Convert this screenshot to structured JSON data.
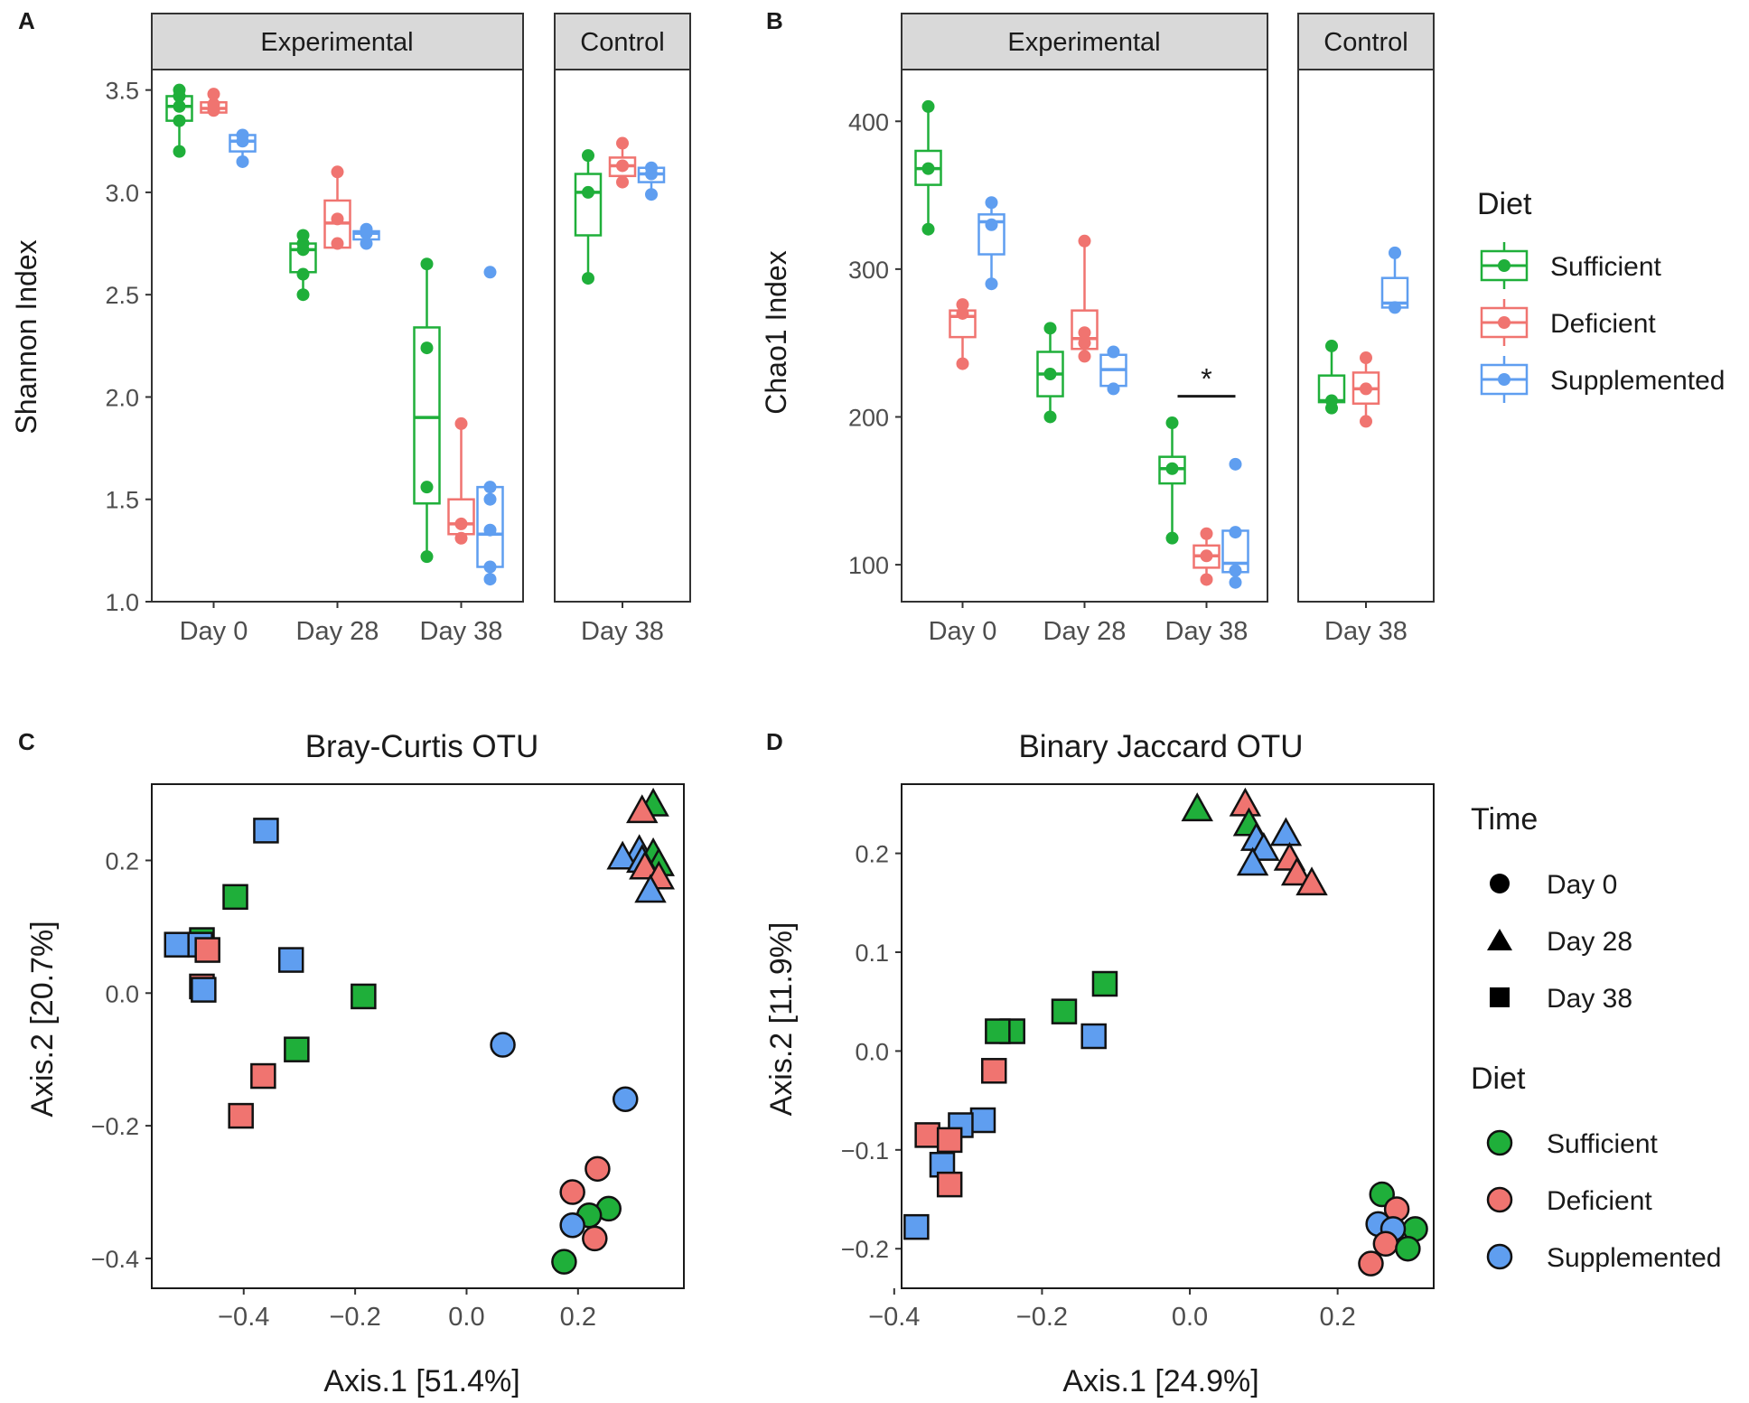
{
  "colors": {
    "Sufficient": "#1faf3a",
    "Deficient": "#f07470",
    "Supplemented": "#5f9ef0",
    "strip_fill": "#d9d9d9",
    "frame": "#333333"
  },
  "chart_data": [
    {
      "panel": "A",
      "type": "box",
      "facets": [
        "Experimental",
        "Control"
      ],
      "facet_categories": [
        [
          "Day 0",
          "Day 28",
          "Day 38"
        ],
        [
          "Day 38"
        ]
      ],
      "ylabel": "Shannon Index",
      "ylim": [
        1.0,
        3.6
      ],
      "yticks": [
        1.0,
        1.5,
        2.0,
        2.5,
        3.0,
        3.5
      ],
      "ytick_labels": [
        "1.0",
        "1.5",
        "2.0",
        "2.5",
        "3.0",
        "3.5"
      ],
      "groups": [
        {
          "facet": 0,
          "category": "Day 0",
          "diet": "Sufficient",
          "q1": 3.35,
          "median": 3.42,
          "q3": 3.47,
          "min": 3.2,
          "max": 3.5,
          "points": [
            3.2,
            3.35,
            3.42,
            3.47,
            3.5
          ]
        },
        {
          "facet": 0,
          "category": "Day 0",
          "diet": "Deficient",
          "q1": 3.39,
          "median": 3.41,
          "q3": 3.44,
          "min": 3.39,
          "max": 3.48,
          "points": [
            3.4,
            3.43,
            3.48
          ]
        },
        {
          "facet": 0,
          "category": "Day 0",
          "diet": "Supplemented",
          "q1": 3.2,
          "median": 3.25,
          "q3": 3.28,
          "min": 3.15,
          "max": 3.28,
          "points": [
            3.15,
            3.25,
            3.28
          ]
        },
        {
          "facet": 0,
          "category": "Day 28",
          "diet": "Sufficient",
          "q1": 2.61,
          "median": 2.72,
          "q3": 2.75,
          "min": 2.5,
          "max": 2.79,
          "points": [
            2.5,
            2.6,
            2.72,
            2.75,
            2.79
          ]
        },
        {
          "facet": 0,
          "category": "Day 28",
          "diet": "Deficient",
          "q1": 2.73,
          "median": 2.85,
          "q3": 2.96,
          "min": 2.73,
          "max": 3.1,
          "points": [
            2.75,
            2.87,
            3.1
          ]
        },
        {
          "facet": 0,
          "category": "Day 28",
          "diet": "Supplemented",
          "q1": 2.77,
          "median": 2.8,
          "q3": 2.81,
          "min": 2.75,
          "max": 2.82,
          "points": [
            2.75,
            2.8,
            2.82
          ]
        },
        {
          "facet": 0,
          "category": "Day 38",
          "diet": "Sufficient",
          "q1": 1.48,
          "median": 1.9,
          "q3": 2.34,
          "min": 1.22,
          "max": 2.65,
          "points": [
            1.22,
            1.56,
            2.24,
            2.65
          ]
        },
        {
          "facet": 0,
          "category": "Day 38",
          "diet": "Deficient",
          "q1": 1.33,
          "median": 1.38,
          "q3": 1.5,
          "min": 1.31,
          "max": 1.87,
          "points": [
            1.31,
            1.38,
            1.87
          ]
        },
        {
          "facet": 0,
          "category": "Day 38",
          "diet": "Supplemented",
          "q1": 1.17,
          "median": 1.33,
          "q3": 1.56,
          "min": 1.11,
          "max": 1.56,
          "points": [
            1.11,
            1.17,
            1.35,
            1.5,
            1.56,
            2.61
          ]
        },
        {
          "facet": 1,
          "category": "Day 38",
          "diet": "Sufficient",
          "q1": 2.79,
          "median": 3.0,
          "q3": 3.09,
          "min": 2.58,
          "max": 3.18,
          "points": [
            2.58,
            3.0,
            3.18
          ]
        },
        {
          "facet": 1,
          "category": "Day 38",
          "diet": "Deficient",
          "q1": 3.08,
          "median": 3.13,
          "q3": 3.17,
          "min": 3.05,
          "max": 3.24,
          "points": [
            3.05,
            3.13,
            3.24
          ]
        },
        {
          "facet": 1,
          "category": "Day 38",
          "diet": "Supplemented",
          "q1": 3.05,
          "median": 3.09,
          "q3": 3.12,
          "min": 2.99,
          "max": 3.12,
          "points": [
            2.99,
            3.09,
            3.12
          ]
        }
      ]
    },
    {
      "panel": "B",
      "type": "box",
      "facets": [
        "Experimental",
        "Control"
      ],
      "facet_categories": [
        [
          "Day 0",
          "Day 28",
          "Day 38"
        ],
        [
          "Day 38"
        ]
      ],
      "ylabel": "Chao1 Index",
      "ylim": [
        75,
        435
      ],
      "yticks": [
        100,
        200,
        300,
        400
      ],
      "ytick_labels": [
        "100",
        "200",
        "300",
        "400"
      ],
      "annotation": {
        "text": "*",
        "category": "Day 38"
      },
      "groups": [
        {
          "facet": 0,
          "category": "Day 0",
          "diet": "Sufficient",
          "q1": 357,
          "median": 368,
          "q3": 380,
          "min": 327,
          "max": 410,
          "points": [
            327,
            368,
            410
          ]
        },
        {
          "facet": 0,
          "category": "Day 0",
          "diet": "Deficient",
          "q1": 254,
          "median": 268,
          "q3": 272,
          "min": 236,
          "max": 276,
          "points": [
            236,
            270,
            276
          ]
        },
        {
          "facet": 0,
          "category": "Day 0",
          "diet": "Supplemented",
          "q1": 310,
          "median": 332,
          "q3": 337,
          "min": 290,
          "max": 345,
          "points": [
            290,
            330,
            345
          ]
        },
        {
          "facet": 0,
          "category": "Day 28",
          "diet": "Sufficient",
          "q1": 214,
          "median": 229,
          "q3": 244,
          "min": 200,
          "max": 260,
          "points": [
            200,
            229,
            260
          ]
        },
        {
          "facet": 0,
          "category": "Day 28",
          "diet": "Deficient",
          "q1": 246,
          "median": 253,
          "q3": 272,
          "min": 241,
          "max": 319,
          "points": [
            241,
            250,
            257,
            319
          ]
        },
        {
          "facet": 0,
          "category": "Day 28",
          "diet": "Supplemented",
          "q1": 221,
          "median": 232,
          "q3": 242,
          "min": 219,
          "max": 244,
          "points": [
            219,
            244
          ]
        },
        {
          "facet": 0,
          "category": "Day 38",
          "diet": "Sufficient",
          "q1": 155,
          "median": 165,
          "q3": 173,
          "min": 118,
          "max": 196,
          "points": [
            118,
            165,
            196
          ]
        },
        {
          "facet": 0,
          "category": "Day 38",
          "diet": "Deficient",
          "q1": 98,
          "median": 106,
          "q3": 113,
          "min": 90,
          "max": 121,
          "points": [
            90,
            106,
            121
          ]
        },
        {
          "facet": 0,
          "category": "Day 38",
          "diet": "Supplemented",
          "q1": 95,
          "median": 101,
          "q3": 123,
          "min": 88,
          "max": 123,
          "points": [
            88,
            96,
            122,
            168
          ]
        },
        {
          "facet": 1,
          "category": "Day 38",
          "diet": "Sufficient",
          "q1": 210,
          "median": 211,
          "q3": 228,
          "min": 206,
          "max": 248,
          "points": [
            206,
            211,
            248
          ]
        },
        {
          "facet": 1,
          "category": "Day 38",
          "diet": "Deficient",
          "q1": 209,
          "median": 219,
          "q3": 230,
          "min": 197,
          "max": 240,
          "points": [
            197,
            219,
            240
          ]
        },
        {
          "facet": 1,
          "category": "Day 38",
          "diet": "Supplemented",
          "q1": 274,
          "median": 277,
          "q3": 294,
          "min": 274,
          "max": 311,
          "points": [
            274,
            311
          ]
        }
      ]
    },
    {
      "panel": "C",
      "type": "scatter",
      "title": "Bray-Curtis OTU",
      "xlabel": "Axis.1 [51.4%]",
      "ylabel": "Axis.2 [20.7%]",
      "xlim": [
        -0.565,
        0.39
      ],
      "ylim": [
        -0.445,
        0.315
      ],
      "xticks": [
        -0.4,
        -0.2,
        0.0,
        0.2
      ],
      "xtick_labels": [
        "−0.4",
        "−0.2",
        "0.0",
        "0.2"
      ],
      "yticks": [
        -0.4,
        -0.2,
        0.0,
        0.2
      ],
      "ytick_labels": [
        "−0.4",
        "−0.2",
        "0.0",
        "0.2"
      ],
      "points": [
        {
          "x": 0.065,
          "y": -0.078,
          "time": "Day 0",
          "diet": "Supplemented"
        },
        {
          "x": 0.285,
          "y": -0.16,
          "time": "Day 0",
          "diet": "Supplemented"
        },
        {
          "x": 0.235,
          "y": -0.265,
          "time": "Day 0",
          "diet": "Deficient"
        },
        {
          "x": 0.19,
          "y": -0.3,
          "time": "Day 0",
          "diet": "Deficient"
        },
        {
          "x": 0.255,
          "y": -0.325,
          "time": "Day 0",
          "diet": "Sufficient"
        },
        {
          "x": 0.22,
          "y": -0.335,
          "time": "Day 0",
          "diet": "Sufficient"
        },
        {
          "x": 0.19,
          "y": -0.35,
          "time": "Day 0",
          "diet": "Supplemented"
        },
        {
          "x": 0.23,
          "y": -0.37,
          "time": "Day 0",
          "diet": "Deficient"
        },
        {
          "x": 0.175,
          "y": -0.405,
          "time": "Day 0",
          "diet": "Sufficient"
        },
        {
          "x": 0.335,
          "y": 0.285,
          "time": "Day 28",
          "diet": "Sufficient"
        },
        {
          "x": 0.315,
          "y": 0.275,
          "time": "Day 28",
          "diet": "Deficient"
        },
        {
          "x": 0.31,
          "y": 0.215,
          "time": "Day 28",
          "diet": "Supplemented"
        },
        {
          "x": 0.335,
          "y": 0.21,
          "time": "Day 28",
          "diet": "Sufficient"
        },
        {
          "x": 0.28,
          "y": 0.205,
          "time": "Day 28",
          "diet": "Supplemented"
        },
        {
          "x": 0.345,
          "y": 0.195,
          "time": "Day 28",
          "diet": "Sufficient"
        },
        {
          "x": 0.315,
          "y": 0.2,
          "time": "Day 28",
          "diet": "Supplemented"
        },
        {
          "x": 0.32,
          "y": 0.19,
          "time": "Day 28",
          "diet": "Deficient"
        },
        {
          "x": 0.345,
          "y": 0.175,
          "time": "Day 28",
          "diet": "Deficient"
        },
        {
          "x": 0.33,
          "y": 0.155,
          "time": "Day 28",
          "diet": "Supplemented"
        },
        {
          "x": -0.36,
          "y": 0.245,
          "time": "Day 38",
          "diet": "Supplemented"
        },
        {
          "x": -0.415,
          "y": 0.145,
          "time": "Day 38",
          "diet": "Sufficient"
        },
        {
          "x": -0.475,
          "y": 0.08,
          "time": "Day 38",
          "diet": "Sufficient"
        },
        {
          "x": -0.52,
          "y": 0.073,
          "time": "Day 38",
          "diet": "Supplemented"
        },
        {
          "x": -0.478,
          "y": 0.073,
          "time": "Day 38",
          "diet": "Supplemented"
        },
        {
          "x": -0.465,
          "y": 0.065,
          "time": "Day 38",
          "diet": "Deficient"
        },
        {
          "x": -0.475,
          "y": 0.01,
          "time": "Day 38",
          "diet": "Deficient"
        },
        {
          "x": -0.472,
          "y": 0.005,
          "time": "Day 38",
          "diet": "Supplemented"
        },
        {
          "x": -0.315,
          "y": 0.05,
          "time": "Day 38",
          "diet": "Supplemented"
        },
        {
          "x": -0.185,
          "y": -0.005,
          "time": "Day 38",
          "diet": "Sufficient"
        },
        {
          "x": -0.305,
          "y": -0.085,
          "time": "Day 38",
          "diet": "Sufficient"
        },
        {
          "x": -0.365,
          "y": -0.125,
          "time": "Day 38",
          "diet": "Deficient"
        },
        {
          "x": -0.405,
          "y": -0.185,
          "time": "Day 38",
          "diet": "Deficient"
        }
      ]
    },
    {
      "panel": "D",
      "type": "scatter",
      "title": "Binary Jaccard OTU",
      "xlabel": "Axis.1 [24.9%]",
      "ylabel": "Axis.2 [11.9%]",
      "xlim": [
        -0.39,
        0.33
      ],
      "ylim": [
        -0.24,
        0.27
      ],
      "xticks": [
        -0.4,
        -0.2,
        0.0,
        0.2
      ],
      "xtick_labels": [
        "−0.4",
        "−0.2",
        "0.0",
        "0.2"
      ],
      "yticks": [
        -0.2,
        -0.1,
        0.0,
        0.1,
        0.2
      ],
      "ytick_labels": [
        "−0.2",
        "−0.1",
        "0.0",
        "0.1",
        "0.2"
      ],
      "points": [
        {
          "x": 0.26,
          "y": -0.145,
          "time": "Day 0",
          "diet": "Sufficient"
        },
        {
          "x": 0.28,
          "y": -0.16,
          "time": "Day 0",
          "diet": "Deficient"
        },
        {
          "x": 0.305,
          "y": -0.18,
          "time": "Day 0",
          "diet": "Sufficient"
        },
        {
          "x": 0.255,
          "y": -0.175,
          "time": "Day 0",
          "diet": "Supplemented"
        },
        {
          "x": 0.275,
          "y": -0.18,
          "time": "Day 0",
          "diet": "Supplemented"
        },
        {
          "x": 0.265,
          "y": -0.195,
          "time": "Day 0",
          "diet": "Deficient"
        },
        {
          "x": 0.295,
          "y": -0.2,
          "time": "Day 0",
          "diet": "Sufficient"
        },
        {
          "x": 0.245,
          "y": -0.215,
          "time": "Day 0",
          "diet": "Deficient"
        },
        {
          "x": 0.01,
          "y": 0.245,
          "time": "Day 28",
          "diet": "Sufficient"
        },
        {
          "x": 0.075,
          "y": 0.25,
          "time": "Day 28",
          "diet": "Deficient"
        },
        {
          "x": 0.08,
          "y": 0.23,
          "time": "Day 28",
          "diet": "Sufficient"
        },
        {
          "x": 0.09,
          "y": 0.215,
          "time": "Day 28",
          "diet": "Supplemented"
        },
        {
          "x": 0.13,
          "y": 0.22,
          "time": "Day 28",
          "diet": "Supplemented"
        },
        {
          "x": 0.1,
          "y": 0.205,
          "time": "Day 28",
          "diet": "Supplemented"
        },
        {
          "x": 0.135,
          "y": 0.195,
          "time": "Day 28",
          "diet": "Deficient"
        },
        {
          "x": 0.085,
          "y": 0.19,
          "time": "Day 28",
          "diet": "Supplemented"
        },
        {
          "x": 0.145,
          "y": 0.18,
          "time": "Day 28",
          "diet": "Deficient"
        },
        {
          "x": 0.165,
          "y": 0.17,
          "time": "Day 28",
          "diet": "Deficient"
        },
        {
          "x": -0.115,
          "y": 0.068,
          "time": "Day 38",
          "diet": "Sufficient"
        },
        {
          "x": -0.17,
          "y": 0.04,
          "time": "Day 38",
          "diet": "Sufficient"
        },
        {
          "x": -0.24,
          "y": 0.02,
          "time": "Day 38",
          "diet": "Sufficient"
        },
        {
          "x": -0.26,
          "y": 0.02,
          "time": "Day 38",
          "diet": "Sufficient"
        },
        {
          "x": -0.13,
          "y": 0.015,
          "time": "Day 38",
          "diet": "Supplemented"
        },
        {
          "x": -0.265,
          "y": -0.02,
          "time": "Day 38",
          "diet": "Deficient"
        },
        {
          "x": -0.28,
          "y": -0.07,
          "time": "Day 38",
          "diet": "Supplemented"
        },
        {
          "x": -0.31,
          "y": -0.075,
          "time": "Day 38",
          "diet": "Supplemented"
        },
        {
          "x": -0.355,
          "y": -0.085,
          "time": "Day 38",
          "diet": "Deficient"
        },
        {
          "x": -0.325,
          "y": -0.09,
          "time": "Day 38",
          "diet": "Deficient"
        },
        {
          "x": -0.335,
          "y": -0.115,
          "time": "Day 38",
          "diet": "Supplemented"
        },
        {
          "x": -0.325,
          "y": -0.135,
          "time": "Day 38",
          "diet": "Deficient"
        },
        {
          "x": -0.37,
          "y": -0.178,
          "time": "Day 38",
          "diet": "Supplemented"
        }
      ]
    }
  ],
  "legends": {
    "diet_top": {
      "title": "Diet",
      "items": [
        "Sufficient",
        "Deficient",
        "Supplemented"
      ]
    },
    "time": {
      "title": "Time",
      "items": [
        "Day 0",
        "Day 28",
        "Day 38"
      ]
    },
    "diet_bottom": {
      "title": "Diet",
      "items": [
        "Sufficient",
        "Deficient",
        "Supplemented"
      ]
    }
  }
}
